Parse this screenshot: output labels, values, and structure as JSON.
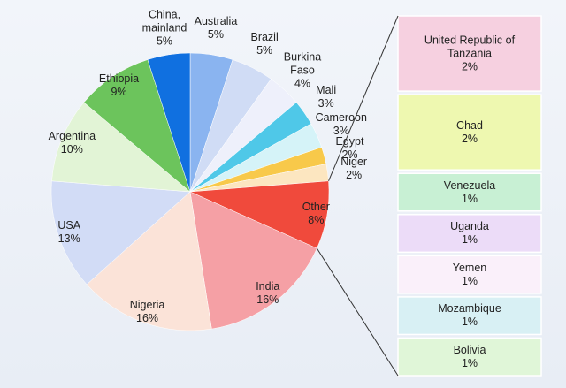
{
  "chart_data": {
    "type": "pie",
    "categories": [
      "Australia",
      "Brazil",
      "Burkina Faso",
      "Mali",
      "Cameroon",
      "Egypt",
      "Niger",
      "Other",
      "India",
      "Nigeria",
      "USA",
      "Argentina",
      "Ethiopia",
      "China, mainland"
    ],
    "values": [
      5,
      5,
      4,
      3,
      3,
      2,
      2,
      8,
      16,
      16,
      13,
      10,
      9,
      5
    ],
    "value_labels": [
      "5%",
      "5%",
      "4%",
      "3%",
      "3%",
      "2%",
      "2%",
      "8%",
      "16%",
      "16%",
      "13%",
      "10%",
      "9%",
      "5%"
    ],
    "colors": [
      "#8ab4f0",
      "#d0dcf5",
      "#eef0fb",
      "#4fc8e8",
      "#d5f3f8",
      "#f8c94a",
      "#fce6c0",
      "#f04a3c",
      "#f5a0a5",
      "#fbe3d8",
      "#d2dcf6",
      "#e2f4d6",
      "#6cc45c",
      "#1070e0"
    ],
    "breakdown": {
      "categories": [
        "United Republic of Tanzania",
        "Chad",
        "Venezuela",
        "Uganda",
        "Yemen",
        "Mozambique",
        "Bolivia"
      ],
      "values": [
        2,
        2,
        1,
        1,
        1,
        1,
        1
      ],
      "value_labels": [
        "2%",
        "2%",
        "1%",
        "1%",
        "1%",
        "1%",
        "1%"
      ],
      "colors": [
        "#f6d0e0",
        "#eef8b0",
        "#c8f0d4",
        "#ecdcf8",
        "#faf0fa",
        "#d8f0f4",
        "#e0f6d8"
      ]
    }
  }
}
